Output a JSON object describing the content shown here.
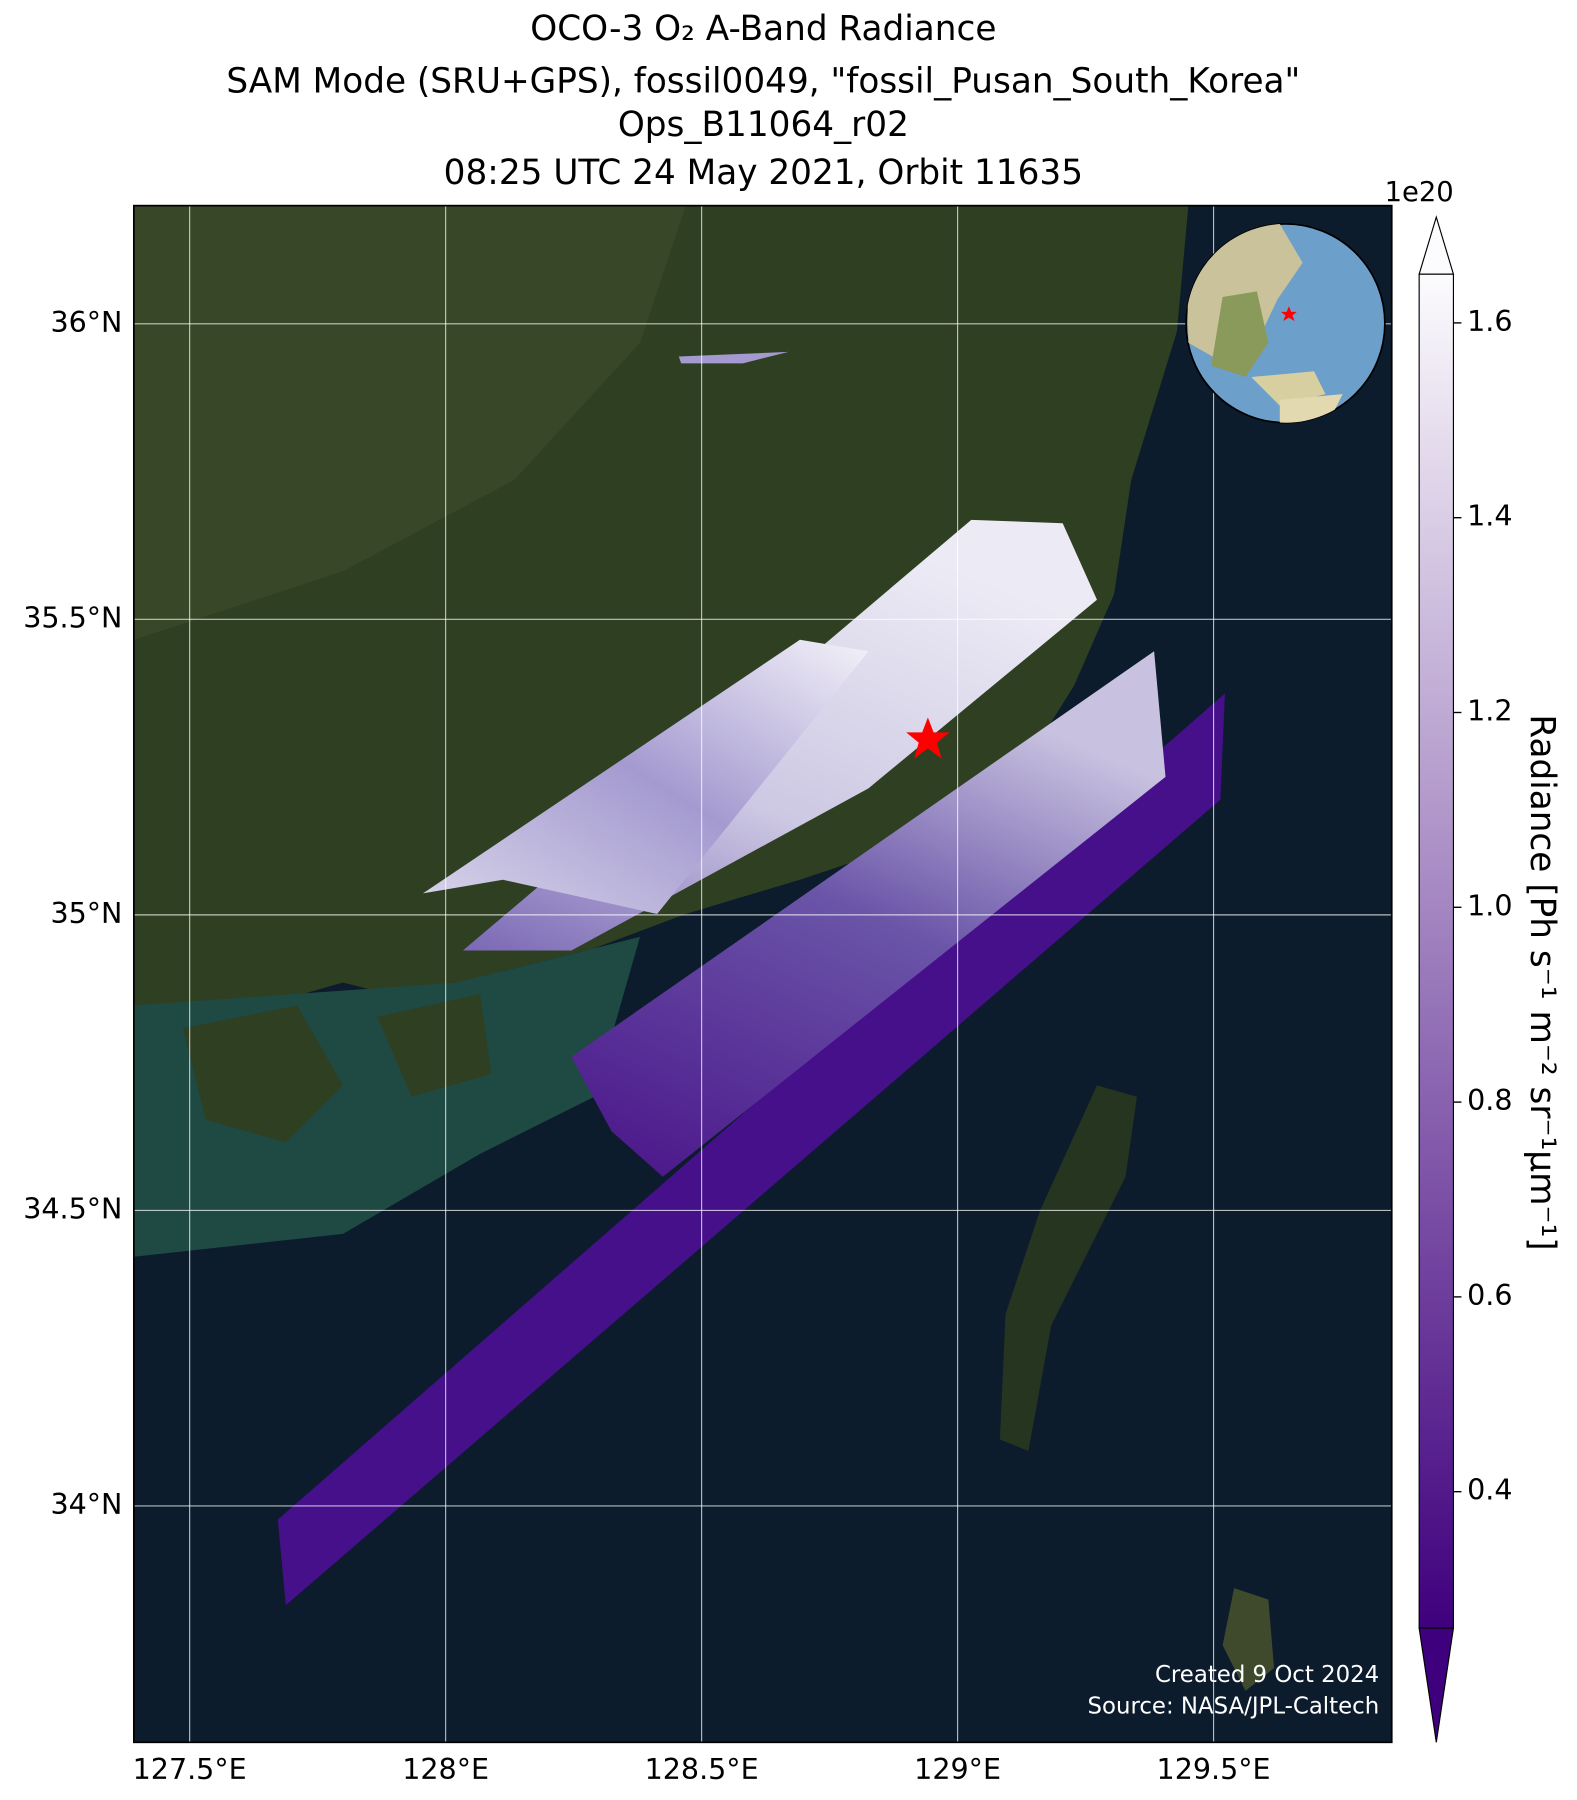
{
  "chart_data": {
    "type": "map",
    "title": [
      "OCO-3 O₂ A-Band Radiance",
      "SAM Mode (SRU+GPS), fossil0049, \"fossil_Pusan_South_Korea\"",
      "Ops_B11064_r02",
      "08:25 UTC 24 May 2021, Orbit 11635"
    ],
    "xlim": [
      127.391,
      129.848
    ],
    "xticks": [
      {
        "value": 127.5,
        "label": "127.5°E"
      },
      {
        "value": 128,
        "label": "128°E"
      },
      {
        "value": 128.5,
        "label": "128.5°E"
      },
      {
        "value": 129,
        "label": "129°E"
      },
      {
        "value": 129.5,
        "label": "129.5°E"
      }
    ],
    "ylim": [
      33.6,
      36.2
    ],
    "yticks": [
      {
        "value": 34,
        "label": "34°N"
      },
      {
        "value": 34.5,
        "label": "34.5°N"
      },
      {
        "value": 35,
        "label": "35°N"
      },
      {
        "value": 35.5,
        "label": "35.5°N"
      },
      {
        "value": 36,
        "label": "36°N"
      }
    ],
    "grid": true,
    "colorbar": {
      "label": "Radiance [Ph s⁻¹ m⁻² sr⁻¹μm⁻¹]",
      "offset_label": "1e20",
      "lim": [
        0.26,
        1.65
      ],
      "colormap": [
        "#3f007d",
        "#fcfbfd"
      ],
      "ticks": [
        0.4,
        0.6,
        0.8,
        {
          "value": 1,
          "label": "1.0"
        },
        1.2,
        1.4,
        1.6
      ]
    },
    "annotations": [
      "Created 9 Oct 2024",
      "Source: NASA/JPL-Caltech"
    ]
  }
}
